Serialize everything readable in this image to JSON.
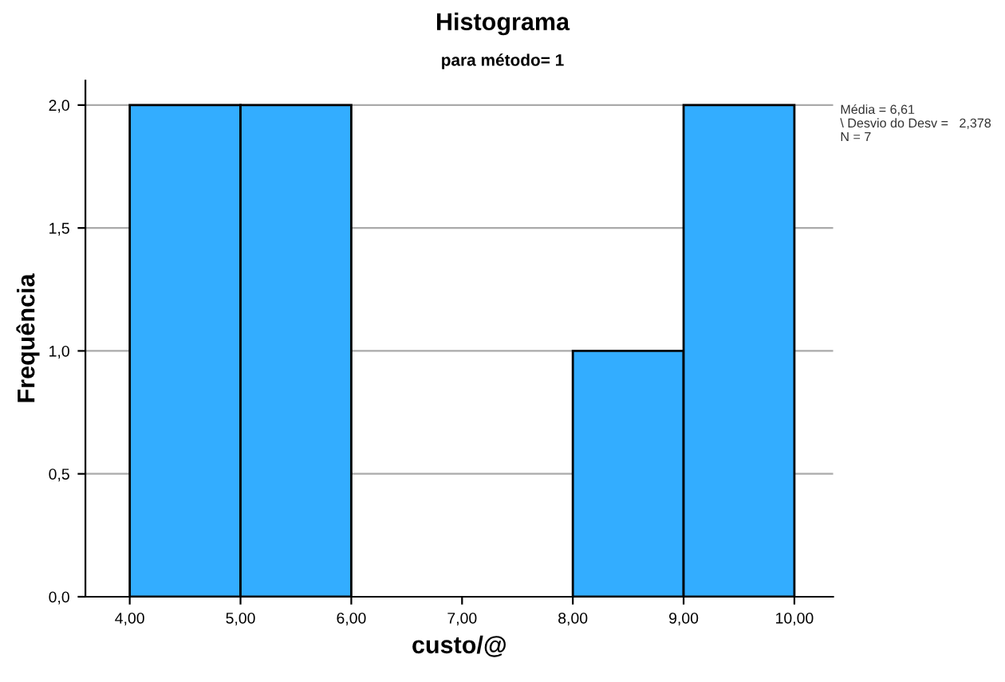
{
  "chart_data": {
    "type": "histogram",
    "title": "Histograma",
    "subtitle": "para método= 1",
    "xlabel": "custo/@",
    "ylabel": "Frequência",
    "bins": [
      4,
      5,
      6,
      7,
      8,
      9,
      10
    ],
    "values": [
      2,
      2,
      0,
      0,
      1,
      2
    ],
    "color": "#33adff",
    "xlim": [
      3.6,
      10.35
    ],
    "xticks": [
      {
        "value": 4,
        "label": "4,00"
      },
      {
        "value": 5,
        "label": "5,00"
      },
      {
        "value": 6,
        "label": "6,00"
      },
      {
        "value": 7,
        "label": "7,00"
      },
      {
        "value": 8,
        "label": "8,00"
      },
      {
        "value": 9,
        "label": "9,00"
      },
      {
        "value": 10,
        "label": "10,00"
      }
    ],
    "ylim": [
      0,
      2.1
    ],
    "yticks": [
      {
        "value": 0,
        "label": "0,0"
      },
      {
        "value": 0.5,
        "label": "0,5"
      },
      {
        "value": 1,
        "label": "1,0"
      },
      {
        "value": 1.5,
        "label": "1,5"
      },
      {
        "value": 2,
        "label": "2,0"
      }
    ],
    "grid": "y",
    "annotations": [
      "Média = 6,61",
      "\\ Desvio do Desv =   2,378",
      "N = 7"
    ]
  }
}
